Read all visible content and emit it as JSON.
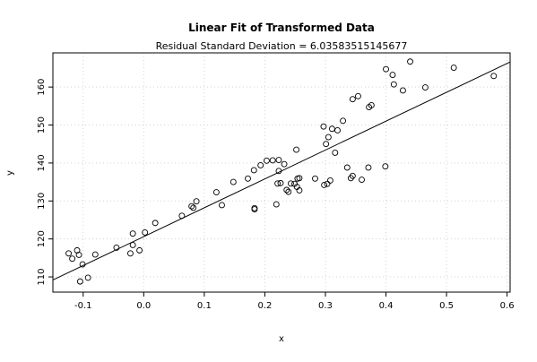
{
  "chart_data": {
    "type": "scatter",
    "title": "Linear Fit of Transformed Data",
    "subtitle": "Residual Standard Deviation =  6.03583515145677",
    "xlabel": "x",
    "ylabel": "y",
    "xlim": [
      -0.15,
      0.605
    ],
    "ylim": [
      106,
      169
    ],
    "x_ticks": [
      -0.1,
      0.0,
      0.1,
      0.2,
      0.3,
      0.4,
      0.5,
      0.6
    ],
    "x_tick_labels": [
      "-0.1",
      "0.0",
      "0.1",
      "0.2",
      "0.3",
      "0.4",
      "0.5",
      "0.6"
    ],
    "y_ticks": [
      110,
      120,
      130,
      140,
      150,
      160
    ],
    "y_tick_labels": [
      "110",
      "120",
      "130",
      "140",
      "150",
      "160"
    ],
    "grid": true,
    "fit_line": {
      "x": [
        -0.15,
        0.605
      ],
      "y": [
        109.2,
        166.6
      ]
    },
    "points": [
      {
        "x": -0.124,
        "y": 116.2
      },
      {
        "x": -0.118,
        "y": 114.8
      },
      {
        "x": -0.11,
        "y": 117.0
      },
      {
        "x": -0.107,
        "y": 115.8
      },
      {
        "x": -0.101,
        "y": 113.3
      },
      {
        "x": -0.105,
        "y": 108.8
      },
      {
        "x": -0.092,
        "y": 109.8
      },
      {
        "x": -0.08,
        "y": 115.9
      },
      {
        "x": -0.045,
        "y": 117.7
      },
      {
        "x": -0.022,
        "y": 116.2
      },
      {
        "x": -0.018,
        "y": 118.4
      },
      {
        "x": -0.018,
        "y": 121.4
      },
      {
        "x": -0.007,
        "y": 117.0
      },
      {
        "x": 0.002,
        "y": 121.7
      },
      {
        "x": 0.019,
        "y": 124.2
      },
      {
        "x": 0.063,
        "y": 126.1
      },
      {
        "x": 0.079,
        "y": 128.6
      },
      {
        "x": 0.082,
        "y": 128.2
      },
      {
        "x": 0.087,
        "y": 129.9
      },
      {
        "x": 0.12,
        "y": 132.3
      },
      {
        "x": 0.129,
        "y": 128.9
      },
      {
        "x": 0.148,
        "y": 135.0
      },
      {
        "x": 0.172,
        "y": 135.9
      },
      {
        "x": 0.182,
        "y": 138.1
      },
      {
        "x": 0.183,
        "y": 128.1
      },
      {
        "x": 0.183,
        "y": 127.8
      },
      {
        "x": 0.193,
        "y": 139.4
      },
      {
        "x": 0.203,
        "y": 140.6
      },
      {
        "x": 0.213,
        "y": 140.7
      },
      {
        "x": 0.219,
        "y": 129.1
      },
      {
        "x": 0.221,
        "y": 134.6
      },
      {
        "x": 0.223,
        "y": 140.8
      },
      {
        "x": 0.223,
        "y": 137.9
      },
      {
        "x": 0.226,
        "y": 134.7
      },
      {
        "x": 0.232,
        "y": 139.7
      },
      {
        "x": 0.236,
        "y": 132.9
      },
      {
        "x": 0.239,
        "y": 132.4
      },
      {
        "x": 0.243,
        "y": 134.6
      },
      {
        "x": 0.249,
        "y": 134.5
      },
      {
        "x": 0.253,
        "y": 133.7
      },
      {
        "x": 0.254,
        "y": 135.9
      },
      {
        "x": 0.257,
        "y": 132.8
      },
      {
        "x": 0.252,
        "y": 143.5
      },
      {
        "x": 0.257,
        "y": 136.0
      },
      {
        "x": 0.283,
        "y": 135.9
      },
      {
        "x": 0.297,
        "y": 149.6
      },
      {
        "x": 0.298,
        "y": 134.2
      },
      {
        "x": 0.301,
        "y": 145.0
      },
      {
        "x": 0.303,
        "y": 134.5
      },
      {
        "x": 0.305,
        "y": 146.8
      },
      {
        "x": 0.308,
        "y": 135.4
      },
      {
        "x": 0.311,
        "y": 149.0
      },
      {
        "x": 0.316,
        "y": 142.7
      },
      {
        "x": 0.32,
        "y": 148.6
      },
      {
        "x": 0.329,
        "y": 151.1
      },
      {
        "x": 0.336,
        "y": 138.8
      },
      {
        "x": 0.342,
        "y": 136.0
      },
      {
        "x": 0.345,
        "y": 136.6
      },
      {
        "x": 0.345,
        "y": 156.8
      },
      {
        "x": 0.354,
        "y": 157.6
      },
      {
        "x": 0.36,
        "y": 135.6
      },
      {
        "x": 0.371,
        "y": 138.8
      },
      {
        "x": 0.372,
        "y": 154.7
      },
      {
        "x": 0.376,
        "y": 155.2
      },
      {
        "x": 0.399,
        "y": 139.1
      },
      {
        "x": 0.4,
        "y": 164.7
      },
      {
        "x": 0.411,
        "y": 163.2
      },
      {
        "x": 0.413,
        "y": 160.7
      },
      {
        "x": 0.428,
        "y": 159.1
      },
      {
        "x": 0.44,
        "y": 166.7
      },
      {
        "x": 0.465,
        "y": 159.9
      },
      {
        "x": 0.512,
        "y": 165.1
      },
      {
        "x": 0.578,
        "y": 162.9
      }
    ]
  }
}
